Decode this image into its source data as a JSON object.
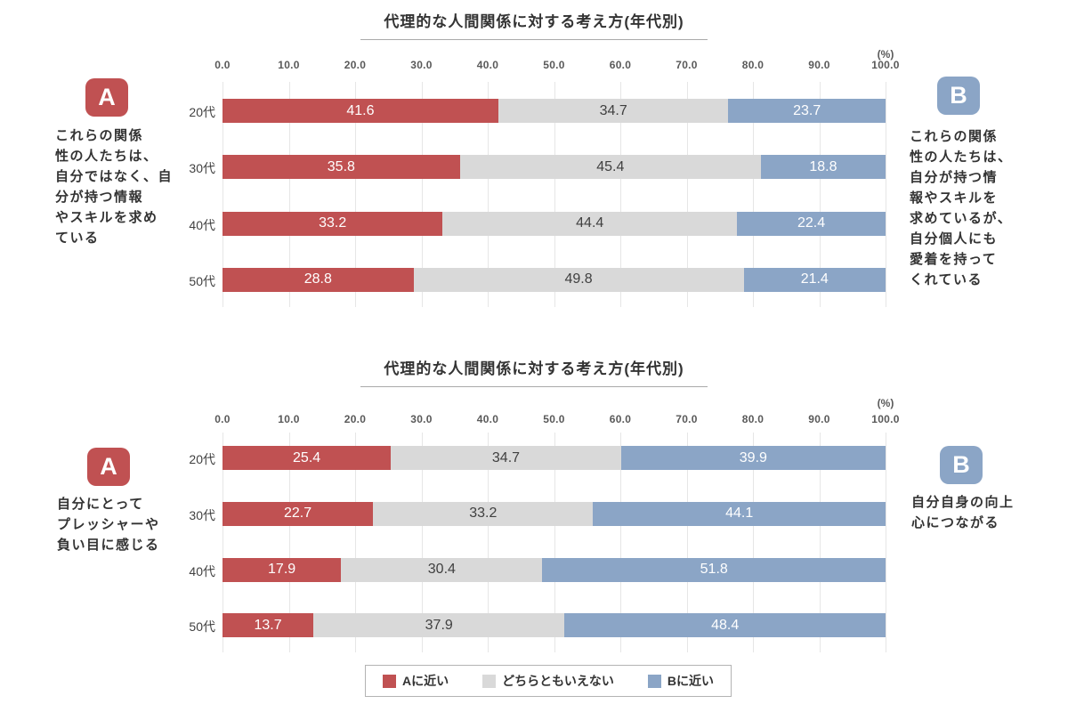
{
  "page": {
    "background": "#ffffff"
  },
  "colors": {
    "a_red": "#c05152",
    "neutral_gray": "#d9d9d9",
    "b_blue": "#8ba5c6",
    "gridline": "#e6e6e6",
    "title_text": "#333333",
    "axis_text": "#595959"
  },
  "legend": {
    "items": [
      {
        "label": "Aに近い",
        "color": "#c05152"
      },
      {
        "label": "どちらともいえない",
        "color": "#d9d9d9"
      },
      {
        "label": "Bに近い",
        "color": "#8ba5c6"
      }
    ]
  },
  "chart_data": [
    {
      "type": "bar",
      "orientation": "horizontal",
      "stacked": true,
      "title": "代理的な人間関係に対する考え方(年代別)",
      "unit_label": "(%)",
      "xlim": [
        0,
        100
      ],
      "grid": true,
      "ticks": [
        "0.0",
        "10.0",
        "20.0",
        "30.0",
        "40.0",
        "50.0",
        "60.0",
        "70.0",
        "80.0",
        "90.0",
        "100.0"
      ],
      "categories": [
        "20代",
        "30代",
        "40代",
        "50代"
      ],
      "series": [
        {
          "name": "Aに近い",
          "color": "#c05152",
          "text_color": "#ffffff",
          "values": [
            41.6,
            35.8,
            33.2,
            28.8
          ]
        },
        {
          "name": "どちらともいえない",
          "color": "#d9d9d9",
          "text_color": "#404040",
          "values": [
            34.7,
            45.4,
            44.4,
            49.8
          ]
        },
        {
          "name": "Bに近い",
          "color": "#8ba5c6",
          "text_color": "#ffffff",
          "values": [
            23.7,
            18.8,
            22.4,
            21.4
          ]
        }
      ],
      "side_a": {
        "badge": "A",
        "color": "#c05152",
        "text": "これらの関係\n性の人たちは、\n自分ではなく、自\n分が持つ情報\nやスキルを求め\nている"
      },
      "side_b": {
        "badge": "B",
        "color": "#8ba5c6",
        "text": "これらの関係\n性の人たちは、\n自分が持つ情\n報やスキルを\n求めているが、\n自分個人にも\n愛着を持って\nくれている"
      }
    },
    {
      "type": "bar",
      "orientation": "horizontal",
      "stacked": true,
      "title": "代理的な人間関係に対する考え方(年代別)",
      "unit_label": "(%)",
      "xlim": [
        0,
        100
      ],
      "grid": true,
      "ticks": [
        "0.0",
        "10.0",
        "20.0",
        "30.0",
        "40.0",
        "50.0",
        "60.0",
        "70.0",
        "80.0",
        "90.0",
        "100.0"
      ],
      "categories": [
        "20代",
        "30代",
        "40代",
        "50代"
      ],
      "series": [
        {
          "name": "Aに近い",
          "color": "#c05152",
          "text_color": "#ffffff",
          "values": [
            25.4,
            22.7,
            17.9,
            13.7
          ]
        },
        {
          "name": "どちらともいえない",
          "color": "#d9d9d9",
          "text_color": "#404040",
          "values": [
            34.7,
            33.2,
            30.4,
            37.9
          ]
        },
        {
          "name": "Bに近い",
          "color": "#8ba5c6",
          "text_color": "#ffffff",
          "values": [
            39.9,
            44.1,
            51.8,
            48.4
          ]
        }
      ],
      "side_a": {
        "badge": "A",
        "color": "#c05152",
        "text": "自分にとって\nプレッシャーや\n負い目に感じる"
      },
      "side_b": {
        "badge": "B",
        "color": "#8ba5c6",
        "text": "自分自身の向上\n心につながる"
      }
    }
  ]
}
